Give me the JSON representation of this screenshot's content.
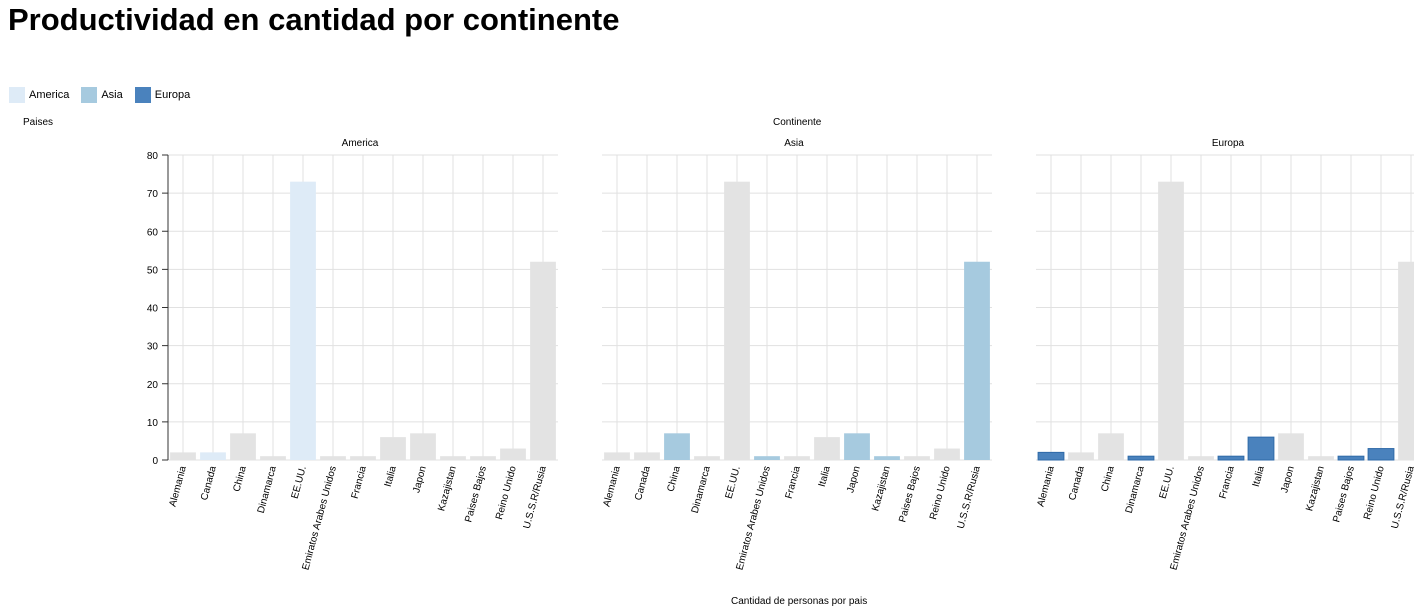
{
  "title": "Productividad en cantidad por continente",
  "legend": [
    {
      "label": "America",
      "color": "#deebf7"
    },
    {
      "label": "Asia",
      "color": "#a6cadf"
    },
    {
      "label": "Europa",
      "color": "#4a82bd"
    }
  ],
  "chart_data": {
    "type": "bar",
    "title": "Productividad en cantidad por continente",
    "ylabel": "Paises",
    "xlabel": "Cantidad de personas por pais",
    "facet_label": "Continente",
    "ylim": [
      0,
      80
    ],
    "y_ticks": [
      0,
      10,
      20,
      30,
      40,
      50,
      60,
      70,
      80
    ],
    "grid": true,
    "legend_position": "top-left",
    "background_color": "#e3e3e3",
    "categories": [
      "Alemania",
      "Canada",
      "China",
      "Dinamarca",
      "EE.UU.",
      "Emiratos Arabes Unidos",
      "Francia",
      "Italia",
      "Japon",
      "Kazajistan",
      "Paises Bajos",
      "Reino Unido",
      "U.S.S.R/Rusia"
    ],
    "values": [
      2,
      2,
      7,
      1,
      73,
      1,
      1,
      6,
      7,
      1,
      1,
      3,
      52
    ],
    "continents": [
      "Europa",
      "America",
      "Asia",
      "Europa",
      "America",
      "Asia",
      "Europa",
      "Europa",
      "Asia",
      "Asia",
      "Europa",
      "Europa",
      "Asia"
    ],
    "facets": [
      {
        "name": "America",
        "color": "#deebf7"
      },
      {
        "name": "Asia",
        "color": "#a6cadf"
      },
      {
        "name": "Europa",
        "color": "#4a82bd"
      }
    ]
  }
}
